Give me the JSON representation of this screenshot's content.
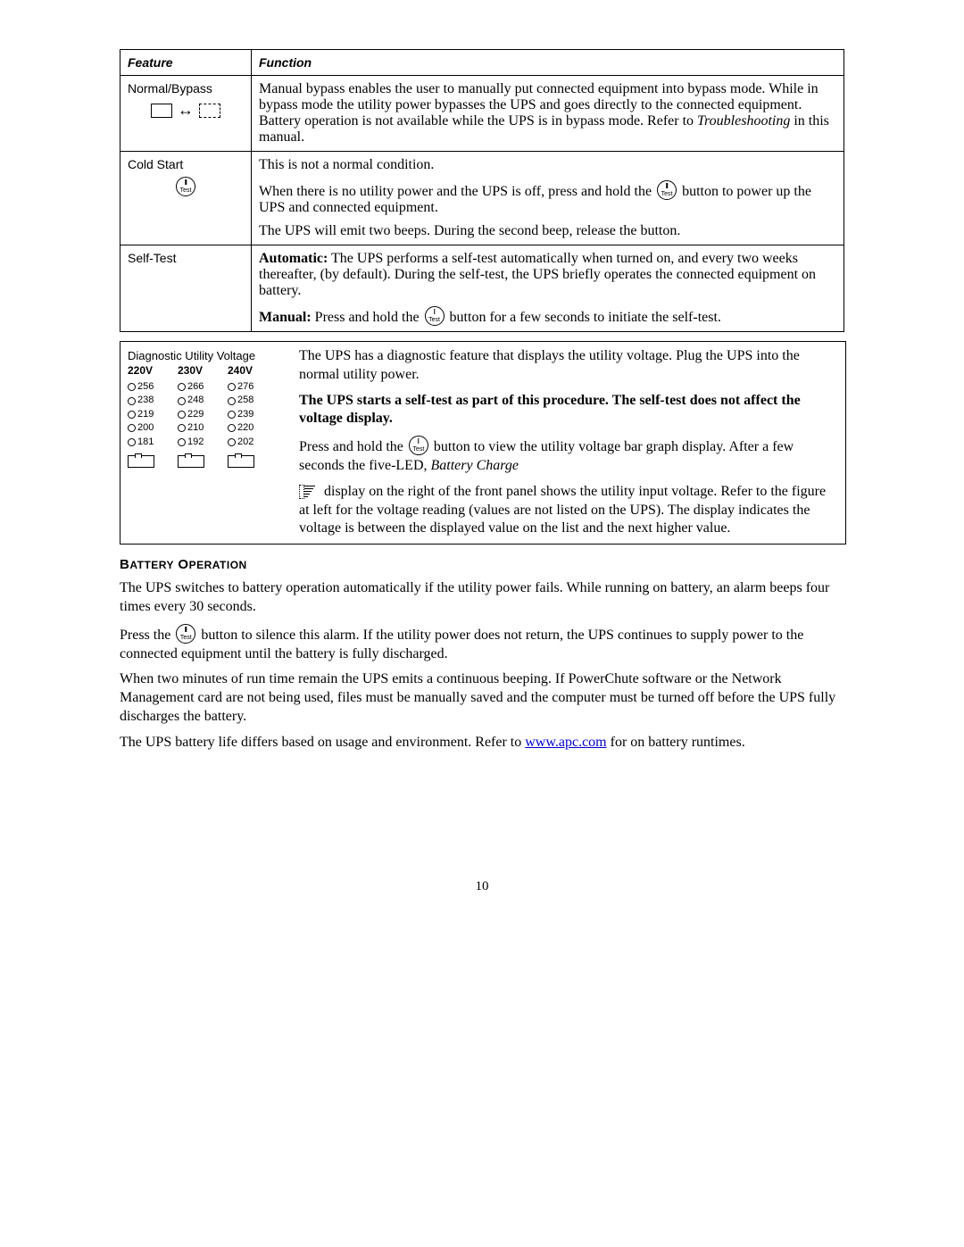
{
  "table": {
    "headers": {
      "feature": "Feature",
      "function": "Function"
    },
    "rows": [
      {
        "feature_label": "Normal/Bypass",
        "func": "Manual bypass enables the user to manually put connected equipment into bypass mode. While in bypass mode the utility power bypasses the UPS and goes directly to the connected equipment. Battery operation is not available while the UPS is in bypass mode. Refer to ",
        "func_italic": "Troubleshooting",
        "func_tail": " in this manual."
      },
      {
        "feature_label": "Cold Start",
        "p1": "This is not a normal condition.",
        "p2a": "When there is no utility power and the UPS is off, press and hold the ",
        "p2b": " button to power up the UPS and connected equipment.",
        "p3": "The UPS will emit two beeps. During the second beep, release the button."
      },
      {
        "feature_label": "Self-Test",
        "auto_label": "Automatic:",
        "auto_text": " The UPS performs a self-test automatically when turned on, and every two weeks thereafter, (by default). During the self-test, the UPS briefly operates the connected equipment on battery.",
        "manual_label": "Manual:",
        "manual_a": " Press and hold the ",
        "manual_b": " button for a few seconds to initiate the self-test."
      }
    ]
  },
  "diag": {
    "title": "Diagnostic Utility Voltage",
    "headers": [
      "220V",
      "230V",
      "240V"
    ],
    "rows": [
      [
        "256",
        "266",
        "276"
      ],
      [
        "238",
        "248",
        "258"
      ],
      [
        "219",
        "229",
        "239"
      ],
      [
        "200",
        "210",
        "220"
      ],
      [
        "181",
        "192",
        "202"
      ]
    ],
    "r1": "The UPS has a diagnostic feature that displays the utility voltage. Plug the UPS into the normal utility power.",
    "r2": "The UPS starts a self-test as part of this procedure. The self-test does not affect the voltage display.",
    "r3a": "Press and hold the ",
    "r3b": " button to view the utility voltage bar graph display. After a few seconds the five-LED, ",
    "r3c": "Battery Charge",
    "r4": " display on the right of the front panel shows the utility input voltage. Refer to the figure at left for the voltage reading (values are not listed on the UPS). The display indicates the voltage is between the displayed value on the list and the next higher value."
  },
  "section_heading": "Battery Operation",
  "p1": "The UPS switches to battery operation automatically if the utility power fails. While running on battery, an alarm beeps four times every 30 seconds.",
  "p2a": "Press the ",
  "p2b": " button to silence this alarm. If the utility power does not return, the UPS continues to supply power to the connected equipment until the battery is fully discharged.",
  "p3": "When two minutes of run time remain the UPS emits a continuous beeping. If PowerChute software or the Network Management card are not being used, files must be manually saved and the computer must be turned off before the UPS fully discharges the battery.",
  "p4a": "The UPS battery life differs based on usage and environment. Refer to ",
  "link_text": "www.apc.com",
  "p4b": " for on battery runtimes.",
  "page_number": "10"
}
